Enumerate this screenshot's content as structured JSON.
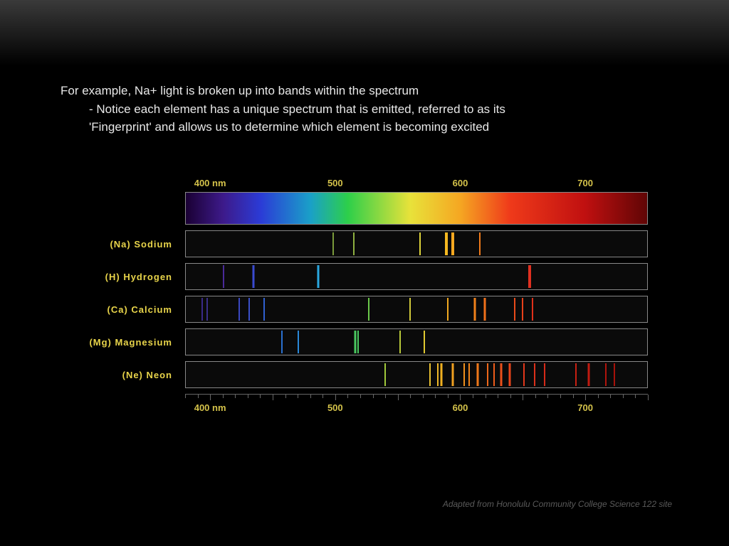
{
  "header": {
    "line1": "For example, Na+ light is broken up into bands within the spectrum",
    "line2": "- Notice each element has a unique spectrum that is emitted, referred to as its",
    "line3": "'Fingerprint' and allows us to determine which element is becoming excited"
  },
  "axis": {
    "min_nm": 380,
    "max_nm": 750,
    "labels": [
      {
        "text": "400 nm",
        "nm": 400
      },
      {
        "text": "500",
        "nm": 500
      },
      {
        "text": "600",
        "nm": 600
      },
      {
        "text": "700",
        "nm": 700
      }
    ],
    "tick_step_nm": 10,
    "label_color": "#d4c24a",
    "label_fontsize": 13
  },
  "continuous_gradient_stops": [
    {
      "nm": 380,
      "color": "#1a0033"
    },
    {
      "nm": 410,
      "color": "#3d1a8a"
    },
    {
      "nm": 440,
      "color": "#2b3bd6"
    },
    {
      "nm": 480,
      "color": "#1aa0c8"
    },
    {
      "nm": 510,
      "color": "#2dcf4a"
    },
    {
      "nm": 560,
      "color": "#e8e23a"
    },
    {
      "nm": 600,
      "color": "#f5a722"
    },
    {
      "nm": 640,
      "color": "#ef3a1a"
    },
    {
      "nm": 700,
      "color": "#c01010"
    },
    {
      "nm": 750,
      "color": "#600505"
    }
  ],
  "elements": [
    {
      "symbol": "(Na)",
      "name": "Sodium",
      "lines": [
        {
          "nm": 498,
          "color": "#7a9a3a",
          "w": "thin"
        },
        {
          "nm": 515,
          "color": "#8eb040",
          "w": "thin"
        },
        {
          "nm": 568,
          "color": "#dcd23a",
          "w": "thin"
        },
        {
          "nm": 589,
          "color": "#f5b820",
          "w": "thick"
        },
        {
          "nm": 594,
          "color": "#f5a820",
          "w": "thick"
        },
        {
          "nm": 616,
          "color": "#ef7a1a",
          "w": "thin"
        }
      ]
    },
    {
      "symbol": "(H)",
      "name": "Hydrogen",
      "lines": [
        {
          "nm": 410,
          "color": "#4a2a9a",
          "w": "thin"
        },
        {
          "nm": 434,
          "color": "#3a4ad0",
          "w": ""
        },
        {
          "nm": 486,
          "color": "#2aa8e0",
          "w": ""
        },
        {
          "nm": 656,
          "color": "#e03020",
          "w": "thick"
        }
      ]
    },
    {
      "symbol": "(Ca)",
      "name": "Calcium",
      "lines": [
        {
          "nm": 393,
          "color": "#3a2a8a",
          "w": "thin"
        },
        {
          "nm": 397,
          "color": "#3a308a",
          "w": "thin"
        },
        {
          "nm": 423,
          "color": "#3a48c0",
          "w": "thin"
        },
        {
          "nm": 431,
          "color": "#3a50c8",
          "w": "thin"
        },
        {
          "nm": 443,
          "color": "#3060d0",
          "w": "thin"
        },
        {
          "nm": 527,
          "color": "#6ac84a",
          "w": "thin"
        },
        {
          "nm": 560,
          "color": "#d0c83a",
          "w": "thin"
        },
        {
          "nm": 590,
          "color": "#f0a820",
          "w": "thin"
        },
        {
          "nm": 612,
          "color": "#ef801a",
          "w": ""
        },
        {
          "nm": 620,
          "color": "#ef701a",
          "w": ""
        },
        {
          "nm": 644,
          "color": "#e84a1a",
          "w": "thin"
        },
        {
          "nm": 650,
          "color": "#e8401a",
          "w": "thin"
        },
        {
          "nm": 658,
          "color": "#e0301a",
          "w": "thin"
        }
      ]
    },
    {
      "symbol": "(Mg)",
      "name": "Magnesium",
      "lines": [
        {
          "nm": 457,
          "color": "#2a70d0",
          "w": "thin"
        },
        {
          "nm": 470,
          "color": "#2a88d8",
          "w": "thin"
        },
        {
          "nm": 516,
          "color": "#4ac860",
          "w": ""
        },
        {
          "nm": 518,
          "color": "#4ac860",
          "w": "thin"
        },
        {
          "nm": 552,
          "color": "#b8c83a",
          "w": "thin"
        },
        {
          "nm": 571,
          "color": "#e0c830",
          "w": "thin"
        }
      ]
    },
    {
      "symbol": "(Ne)",
      "name": "Neon",
      "lines": [
        {
          "nm": 540,
          "color": "#a0c83a",
          "w": "thin"
        },
        {
          "nm": 576,
          "color": "#e8c030",
          "w": "thin"
        },
        {
          "nm": 582,
          "color": "#f0b828",
          "w": "thin"
        },
        {
          "nm": 585,
          "color": "#f0b020",
          "w": ""
        },
        {
          "nm": 594,
          "color": "#f0a020",
          "w": ""
        },
        {
          "nm": 603,
          "color": "#f0901c",
          "w": "thin"
        },
        {
          "nm": 607,
          "color": "#f0841a",
          "w": "thin"
        },
        {
          "nm": 614,
          "color": "#ef781a",
          "w": ""
        },
        {
          "nm": 622,
          "color": "#ef681a",
          "w": "thin"
        },
        {
          "nm": 627,
          "color": "#ef5c1a",
          "w": "thin"
        },
        {
          "nm": 633,
          "color": "#ea501a",
          "w": ""
        },
        {
          "nm": 640,
          "color": "#e8441a",
          "w": ""
        },
        {
          "nm": 651,
          "color": "#e2381a",
          "w": "thin"
        },
        {
          "nm": 660,
          "color": "#dc301a",
          "w": "thin"
        },
        {
          "nm": 668,
          "color": "#d62a18",
          "w": "thin"
        },
        {
          "nm": 693,
          "color": "#c82012",
          "w": "thin"
        },
        {
          "nm": 703,
          "color": "#c01a10",
          "w": ""
        },
        {
          "nm": 717,
          "color": "#b0140c",
          "w": "thin"
        },
        {
          "nm": 724,
          "color": "#a8120a",
          "w": "thin"
        }
      ]
    }
  ],
  "element_label_color": "#e8d44a",
  "credit": "Adapted from Honolulu Community College Science 122 site",
  "colors": {
    "background_top": "#3a3a3a",
    "background": "#000000",
    "box_border": "#888888",
    "box_bg": "#0a0a0a",
    "text": "#e8e8e8",
    "credit": "#5a5a5a"
  }
}
